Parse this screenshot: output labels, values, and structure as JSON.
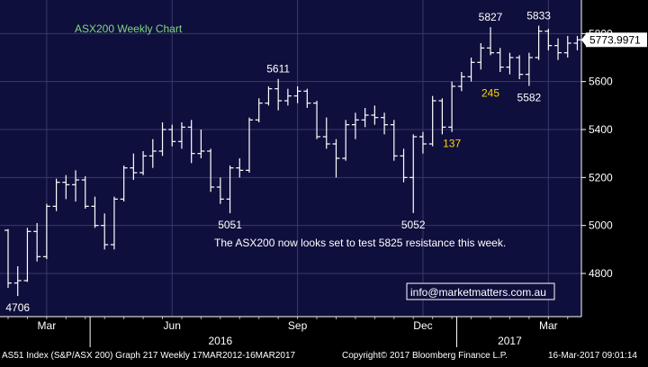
{
  "chart_data": {
    "type": "ohlc",
    "title": "ASX200 Weekly Chart",
    "last_price": "5773.9971",
    "annotation": "The ASX200 now looks set to test 5825 resistance this week.",
    "contact": "info@marketmatters.com.au",
    "ylim": [
      4620,
      5940
    ],
    "yticks": [
      "5800",
      "5600",
      "5400",
      "5200",
      "5000",
      "4800"
    ],
    "month_labels": [
      {
        "label": "Mar",
        "week": 4
      },
      {
        "label": "Jun",
        "week": 17
      },
      {
        "label": "Sep",
        "week": 30
      },
      {
        "label": "Dec",
        "week": 43
      },
      {
        "label": "Mar",
        "week": 56
      }
    ],
    "year_labels": [
      {
        "label": "2016",
        "week": 22
      },
      {
        "label": "2017",
        "week": 52
      }
    ],
    "year_dividers": [
      8,
      46
    ],
    "bars": [
      {
        "o": 4980,
        "h": 4985,
        "l": 4740,
        "c": 4760
      },
      {
        "o": 4760,
        "h": 4830,
        "l": 4706,
        "c": 4770
      },
      {
        "o": 4770,
        "h": 4990,
        "l": 4765,
        "c": 4975
      },
      {
        "o": 4975,
        "h": 5010,
        "l": 4850,
        "c": 4870
      },
      {
        "o": 4870,
        "h": 5090,
        "l": 4860,
        "c": 5080
      },
      {
        "o": 5080,
        "h": 5195,
        "l": 5060,
        "c": 5180
      },
      {
        "o": 5180,
        "h": 5210,
        "l": 5110,
        "c": 5170
      },
      {
        "o": 5170,
        "h": 5230,
        "l": 5100,
        "c": 5190
      },
      {
        "o": 5190,
        "h": 5205,
        "l": 5070,
        "c": 5080
      },
      {
        "o": 5080,
        "h": 5120,
        "l": 4990,
        "c": 5000
      },
      {
        "o": 5000,
        "h": 5050,
        "l": 4900,
        "c": 4920
      },
      {
        "o": 4920,
        "h": 5120,
        "l": 4900,
        "c": 5110
      },
      {
        "o": 5110,
        "h": 5250,
        "l": 5100,
        "c": 5240
      },
      {
        "o": 5240,
        "h": 5300,
        "l": 5190,
        "c": 5220
      },
      {
        "o": 5220,
        "h": 5310,
        "l": 5210,
        "c": 5290
      },
      {
        "o": 5290,
        "h": 5360,
        "l": 5240,
        "c": 5310
      },
      {
        "o": 5310,
        "h": 5430,
        "l": 5290,
        "c": 5400
      },
      {
        "o": 5400,
        "h": 5420,
        "l": 5330,
        "c": 5350
      },
      {
        "o": 5350,
        "h": 5430,
        "l": 5320,
        "c": 5410
      },
      {
        "o": 5410,
        "h": 5440,
        "l": 5260,
        "c": 5300
      },
      {
        "o": 5300,
        "h": 5400,
        "l": 5280,
        "c": 5310
      },
      {
        "o": 5310,
        "h": 5320,
        "l": 5140,
        "c": 5160
      },
      {
        "o": 5160,
        "h": 5200,
        "l": 5090,
        "c": 5110
      },
      {
        "o": 5110,
        "h": 5250,
        "l": 5051,
        "c": 5240
      },
      {
        "o": 5240,
        "h": 5280,
        "l": 5200,
        "c": 5230
      },
      {
        "o": 5230,
        "h": 5450,
        "l": 5220,
        "c": 5440
      },
      {
        "o": 5440,
        "h": 5530,
        "l": 5430,
        "c": 5510
      },
      {
        "o": 5510,
        "h": 5580,
        "l": 5500,
        "c": 5570
      },
      {
        "o": 5570,
        "h": 5611,
        "l": 5480,
        "c": 5520
      },
      {
        "o": 5520,
        "h": 5570,
        "l": 5500,
        "c": 5540
      },
      {
        "o": 5540,
        "h": 5580,
        "l": 5510,
        "c": 5560
      },
      {
        "o": 5560,
        "h": 5570,
        "l": 5490,
        "c": 5510
      },
      {
        "o": 5510,
        "h": 5520,
        "l": 5360,
        "c": 5370
      },
      {
        "o": 5370,
        "h": 5450,
        "l": 5320,
        "c": 5340
      },
      {
        "o": 5340,
        "h": 5360,
        "l": 5200,
        "c": 5280
      },
      {
        "o": 5280,
        "h": 5440,
        "l": 5270,
        "c": 5420
      },
      {
        "o": 5420,
        "h": 5470,
        "l": 5360,
        "c": 5440
      },
      {
        "o": 5440,
        "h": 5490,
        "l": 5410,
        "c": 5460
      },
      {
        "o": 5460,
        "h": 5500,
        "l": 5420,
        "c": 5450
      },
      {
        "o": 5450,
        "h": 5470,
        "l": 5380,
        "c": 5420
      },
      {
        "o": 5420,
        "h": 5440,
        "l": 5270,
        "c": 5290
      },
      {
        "o": 5290,
        "h": 5320,
        "l": 5180,
        "c": 5200
      },
      {
        "o": 5200,
        "h": 5380,
        "l": 5052,
        "c": 5370
      },
      {
        "o": 5370,
        "h": 5390,
        "l": 5300,
        "c": 5340
      },
      {
        "o": 5340,
        "h": 5540,
        "l": 5330,
        "c": 5520
      },
      {
        "o": 5520,
        "h": 5530,
        "l": 5380,
        "c": 5410
      },
      {
        "o": 5410,
        "h": 5600,
        "l": 5390,
        "c": 5580
      },
      {
        "o": 5580,
        "h": 5640,
        "l": 5560,
        "c": 5620
      },
      {
        "o": 5620,
        "h": 5700,
        "l": 5600,
        "c": 5680
      },
      {
        "o": 5680,
        "h": 5760,
        "l": 5650,
        "c": 5740
      },
      {
        "o": 5740,
        "h": 5827,
        "l": 5710,
        "c": 5720
      },
      {
        "o": 5720,
        "h": 5740,
        "l": 5640,
        "c": 5660
      },
      {
        "o": 5660,
        "h": 5720,
        "l": 5630,
        "c": 5700
      },
      {
        "o": 5700,
        "h": 5710,
        "l": 5610,
        "c": 5630
      },
      {
        "o": 5630,
        "h": 5720,
        "l": 5582,
        "c": 5700
      },
      {
        "o": 5700,
        "h": 5833,
        "l": 5690,
        "c": 5810
      },
      {
        "o": 5810,
        "h": 5820,
        "l": 5730,
        "c": 5750
      },
      {
        "o": 5750,
        "h": 5780,
        "l": 5690,
        "c": 5720
      },
      {
        "o": 5720,
        "h": 5790,
        "l": 5700,
        "c": 5760
      },
      {
        "o": 5760,
        "h": 5790,
        "l": 5730,
        "c": 5774
      }
    ],
    "labels": [
      {
        "text": "4706",
        "bar": 1,
        "price": 4706,
        "position": "below"
      },
      {
        "text": "5051",
        "bar": 23,
        "price": 5051,
        "position": "below"
      },
      {
        "text": "5611",
        "bar": 28,
        "price": 5611,
        "position": "above"
      },
      {
        "text": "5052",
        "bar": 42,
        "price": 5052,
        "position": "below"
      },
      {
        "text": "137",
        "bar": 46,
        "price": 5390,
        "position": "below",
        "color": "#ffd700"
      },
      {
        "text": "5827",
        "bar": 50,
        "price": 5827,
        "position": "above"
      },
      {
        "text": "245",
        "bar": 50,
        "price": 5600,
        "position": "below",
        "color": "#ffd700"
      },
      {
        "text": "5833",
        "bar": 55,
        "price": 5833,
        "position": "above"
      },
      {
        "text": "5582",
        "bar": 54,
        "price": 5582,
        "position": "below"
      }
    ]
  },
  "footer": {
    "left": "AS51 Index (S&P/ASX 200) Graph 217  Weekly 17MAR2012-16MAR2017",
    "center": "Copyright© 2017 Bloomberg Finance L.P.",
    "right": "16-Mar-2017 09:01:14"
  },
  "colors": {
    "plot_bg": "#0f0f3d",
    "grid": "#3a3a6a",
    "bars": "#ffffff",
    "title": "#7fd87f",
    "highlight": "#ffd700"
  }
}
